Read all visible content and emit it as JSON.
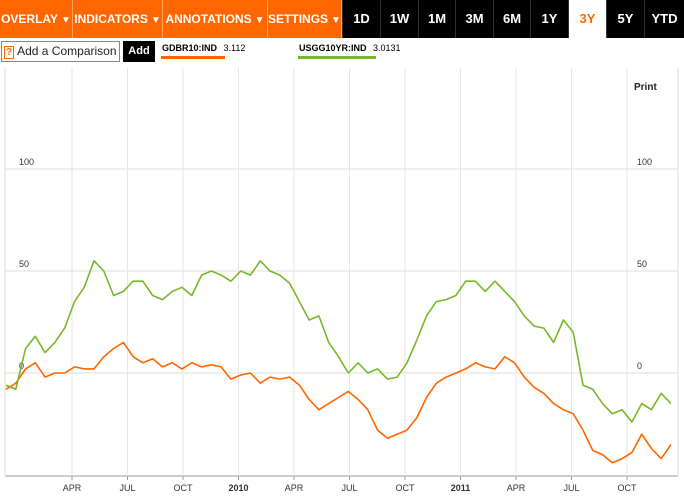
{
  "toolbar": {
    "menus": [
      {
        "label": "OVERLAY",
        "caret": "▼"
      },
      {
        "label": "INDICATORS",
        "caret": "▼"
      },
      {
        "label": "ANNOTATIONS",
        "caret": "▼"
      },
      {
        "label": "SETTINGS",
        "caret": "▼"
      }
    ],
    "ranges": [
      "1D",
      "1W",
      "1M",
      "3M",
      "6M",
      "1Y",
      "3Y",
      "5Y",
      "YTD"
    ],
    "active_range": "3Y"
  },
  "compare": {
    "help": "?",
    "placeholder": "Add a Comparison",
    "add_label": "Add"
  },
  "legend": [
    {
      "ticker": "GDBR10:IND",
      "value": "3.112",
      "color": "#ff6600"
    },
    {
      "ticker": "USGG10YR:IND",
      "value": "3.0131",
      "color": "#77b82a"
    }
  ],
  "print_label": "Print",
  "colors": {
    "accent": "#ff6600",
    "series_a": "#ff6600",
    "series_b": "#77b82a",
    "grid": "#cccccc"
  },
  "chart_data": {
    "type": "line",
    "y_ticks": [
      0,
      50,
      100
    ],
    "y_range": [
      -50,
      150
    ],
    "x_ticks": [
      "APR",
      "JUL",
      "OCT",
      "2010",
      "APR",
      "JUL",
      "OCT",
      "2011",
      "APR",
      "JUL",
      "OCT"
    ],
    "grid": true,
    "series": [
      {
        "name": "GDBR10:IND",
        "color": "#ff6600",
        "values": [
          -8,
          -5,
          2,
          5,
          -2,
          0,
          0,
          3,
          2,
          2,
          8,
          12,
          15,
          8,
          5,
          7,
          3,
          5,
          2,
          5,
          3,
          4,
          3,
          -3,
          -1,
          0,
          -5,
          -2,
          -3,
          -2,
          -6,
          -13,
          -18,
          -15,
          -12,
          -9,
          -13,
          -18,
          -28,
          -32,
          -30,
          -28,
          -22,
          -12,
          -5,
          -2,
          0,
          2,
          5,
          3,
          2,
          8,
          5,
          -2,
          -7,
          -10,
          -15,
          -18,
          -20,
          -28,
          -38,
          -40,
          -44,
          -42,
          -39,
          -30,
          -37,
          -42,
          -35
        ]
      },
      {
        "name": "USGG10YR:IND",
        "color": "#77b82a",
        "values": [
          -6,
          -8,
          12,
          18,
          10,
          15,
          22,
          35,
          42,
          55,
          50,
          38,
          40,
          45,
          45,
          38,
          36,
          40,
          42,
          38,
          48,
          50,
          48,
          45,
          50,
          48,
          55,
          50,
          48,
          44,
          35,
          26,
          28,
          15,
          8,
          0,
          5,
          0,
          2,
          -3,
          -2,
          5,
          16,
          28,
          35,
          36,
          38,
          45,
          45,
          40,
          45,
          40,
          35,
          28,
          23,
          22,
          15,
          26,
          20,
          -6,
          -8,
          -15,
          -20,
          -18,
          -24,
          -15,
          -18,
          -10,
          -15
        ]
      }
    ]
  }
}
